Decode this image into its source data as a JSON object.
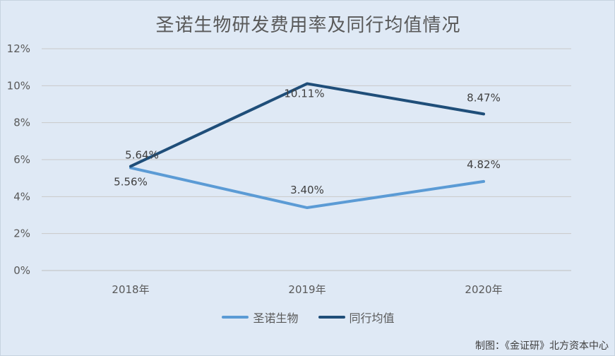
{
  "chart_data": {
    "type": "line",
    "title": "圣诺生物研发费用率及同行均值情况",
    "categories": [
      "2018年",
      "2019年",
      "2020年"
    ],
    "ylim": [
      0,
      12
    ],
    "yticks": [
      "0%",
      "2%",
      "4%",
      "6%",
      "8%",
      "10%",
      "12%"
    ],
    "grid": true,
    "legend_position": "bottom",
    "series": [
      {
        "name": "圣诺生物",
        "color": "#5b9bd5",
        "values": [
          5.56,
          3.4,
          4.82
        ],
        "labels": [
          "5.56%",
          "3.40%",
          "4.82%"
        ]
      },
      {
        "name": "同行均值",
        "color": "#1f4e79",
        "values": [
          5.64,
          10.11,
          8.47
        ],
        "labels": [
          "5.64%",
          "10.11%",
          "8.47%"
        ]
      }
    ]
  },
  "source": "制图：《金证研》北方资本中心"
}
